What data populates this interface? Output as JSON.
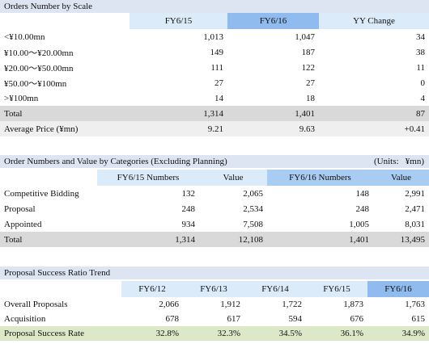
{
  "section1": {
    "title": "Orders Number by Scale",
    "headers": [
      "FY6/15",
      "FY6/16",
      "YY Change"
    ],
    "rows": [
      {
        "label": "<¥10.00mn",
        "c1": "1,013",
        "c2": "1,047",
        "c3": "34"
      },
      {
        "label": "¥10.00～¥20.00mn",
        "c1": "149",
        "c2": "187",
        "c3": "38"
      },
      {
        "label": "¥20.00～¥50.00mn",
        "c1": "111",
        "c2": "122",
        "c3": "11"
      },
      {
        "label": "¥50.00～¥100mn",
        "c1": "27",
        "c2": "27",
        "c3": "0"
      },
      {
        "label": ">¥100mn",
        "c1": "14",
        "c2": "18",
        "c3": "4"
      }
    ],
    "total": {
      "label": "Total",
      "c1": "1,314",
      "c2": "1,401",
      "c3": "87"
    },
    "average": {
      "label": "Average Price (¥mn)",
      "c1": "9.21",
      "c2": "9.63",
      "c3": "+0.41"
    }
  },
  "section2": {
    "title": "Order Numbers and Value by Categories (Excluding Planning)",
    "units": "(Units:   ¥mn)",
    "headers": [
      "FY6/15 Numbers",
      "Value",
      "FY6/16 Numbers",
      "Value"
    ],
    "rows": [
      {
        "label": "Competitive Bidding",
        "c1": "132",
        "c2": "2,065",
        "c3": "148",
        "c4": "2,991"
      },
      {
        "label": "Proposal",
        "c1": "248",
        "c2": "2,534",
        "c3": "248",
        "c4": "2,471"
      },
      {
        "label": "Appointed",
        "c1": "934",
        "c2": "7,508",
        "c3": "1,005",
        "c4": "8,031"
      }
    ],
    "total": {
      "label": "Total",
      "c1": "1,314",
      "c2": "12,108",
      "c3": "1,401",
      "c4": "13,495"
    }
  },
  "section3": {
    "title": "Proposal Success Ratio Trend",
    "headers": [
      "FY6/12",
      "FY6/13",
      "FY6/14",
      "FY6/15",
      "FY6/16"
    ],
    "rows": [
      {
        "label": "Overall Proposals",
        "c1": "2,066",
        "c2": "1,912",
        "c3": "1,722",
        "c4": "1,873",
        "c5": "1,763"
      },
      {
        "label": "Acquisition",
        "c1": "678",
        "c2": "617",
        "c3": "594",
        "c4": "676",
        "c5": "615"
      }
    ],
    "rate": {
      "label": "Proposal Success Rate",
      "c1": "32.8%",
      "c2": "32.3%",
      "c3": "34.5%",
      "c4": "36.1%",
      "c5": "34.9%"
    }
  },
  "colors": {
    "title_band": "#dde5f3",
    "header_light": "#dcebfa",
    "header_dark": "#a9ccf3",
    "header_strong": "#8fbbee",
    "total_row": "#d9d9d9",
    "average_row": "#efefef",
    "rate_row": "#dde8c9"
  }
}
